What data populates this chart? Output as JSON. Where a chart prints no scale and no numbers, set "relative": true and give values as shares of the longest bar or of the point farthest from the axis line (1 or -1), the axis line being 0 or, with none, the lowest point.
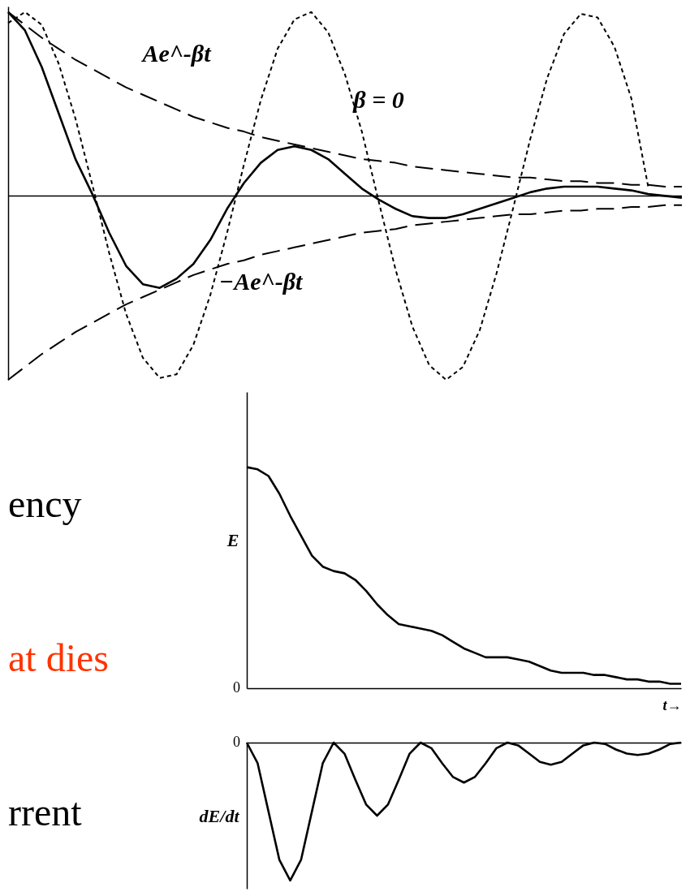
{
  "chart_data": [
    {
      "type": "line",
      "relative": true,
      "tick_labels": false,
      "categories": [
        null,
        null,
        null,
        null,
        null,
        null,
        null,
        null,
        null,
        null,
        null,
        null,
        null,
        null,
        null,
        null,
        null,
        null,
        null,
        null,
        null,
        null,
        null,
        null,
        null,
        null,
        null,
        null,
        null,
        null,
        null,
        null,
        null,
        null,
        null,
        null,
        null,
        null,
        null,
        null,
        null
      ],
      "series": [
        {
          "color": "#000000",
          "line_style": "solid",
          "values": [
            1.0,
            0.9,
            0.7,
            0.45,
            0.2,
            0.01,
            -0.2,
            -0.38,
            -0.48,
            -0.5,
            -0.45,
            -0.37,
            -0.24,
            -0.07,
            0.07,
            0.18,
            0.25,
            0.27,
            0.25,
            0.2,
            0.12,
            0.04,
            -0.02,
            -0.07,
            -0.11,
            -0.12,
            -0.12,
            -0.1,
            -0.07,
            -0.04,
            -0.01,
            0.02,
            0.04,
            0.05,
            0.05,
            0.05,
            0.04,
            0.03,
            0.01,
            0.0,
            -0.01
          ]
        },
        {
          "name": "Ae^-βt",
          "color": "#000000",
          "line_style": "dashed",
          "values": [
            1.0,
            0.93,
            0.86,
            0.8,
            0.74,
            0.69,
            0.64,
            0.59,
            0.55,
            0.51,
            0.47,
            0.43,
            0.4,
            0.37,
            0.35,
            0.32,
            0.3,
            0.28,
            0.26,
            0.24,
            0.22,
            0.2,
            0.19,
            0.18,
            0.16,
            0.15,
            0.14,
            0.13,
            0.12,
            0.11,
            0.1,
            0.1,
            0.09,
            0.08,
            0.08,
            0.07,
            0.07,
            0.06,
            0.06,
            0.05,
            0.05
          ]
        },
        {
          "name": "−Ae^-βt",
          "color": "#000000",
          "line_style": "dashed",
          "values": [
            -1.0,
            -0.93,
            -0.86,
            -0.8,
            -0.74,
            -0.69,
            -0.64,
            -0.59,
            -0.55,
            -0.51,
            -0.47,
            -0.43,
            -0.4,
            -0.37,
            -0.35,
            -0.32,
            -0.3,
            -0.28,
            -0.26,
            -0.24,
            -0.22,
            -0.2,
            -0.19,
            -0.18,
            -0.16,
            -0.15,
            -0.14,
            -0.13,
            -0.12,
            -0.11,
            -0.1,
            -0.1,
            -0.09,
            -0.08,
            -0.08,
            -0.07,
            -0.07,
            -0.06,
            -0.06,
            -0.05,
            -0.05
          ]
        },
        {
          "name": "β = 0",
          "color": "#000000",
          "line_style": "dotted",
          "values": [
            0.94,
            1.0,
            0.93,
            0.72,
            0.42,
            0.06,
            -0.31,
            -0.64,
            -0.88,
            -0.99,
            -0.97,
            -0.81,
            -0.54,
            -0.2,
            0.17,
            0.52,
            0.8,
            0.96,
            1.0,
            0.89,
            0.66,
            0.35,
            -0.03,
            -0.4,
            -0.71,
            -0.92,
            -1.0,
            -0.93,
            -0.73,
            -0.42,
            -0.06,
            0.31,
            0.64,
            0.88,
            0.99,
            0.97,
            0.81,
            0.53,
            0.05,
            null,
            null
          ]
        }
      ]
    },
    {
      "type": "other",
      "annotations": [
        "ency",
        "at dies",
        "rrent"
      ],
      "colors": [
        "#000000",
        "#ff3300",
        "#000000"
      ]
    },
    {
      "type": "line",
      "relative": true,
      "tick_labels": "y",
      "ylabel": "E",
      "xlabel": "t→",
      "annotations": [
        "0"
      ],
      "categories": [
        null,
        null,
        null,
        null,
        null,
        null,
        null,
        null,
        null,
        null,
        null,
        null,
        null,
        null,
        null,
        null,
        null,
        null,
        null,
        null,
        null,
        null,
        null,
        null,
        null,
        null,
        null,
        null,
        null,
        null,
        null,
        null,
        null,
        null,
        null,
        null,
        null,
        null,
        null,
        null,
        null
      ],
      "series": [
        {
          "color": "#000000",
          "line_style": "solid",
          "values": [
            1.0,
            0.99,
            0.96,
            0.88,
            0.78,
            0.69,
            0.6,
            0.55,
            0.53,
            0.52,
            0.49,
            0.44,
            0.38,
            0.33,
            0.29,
            0.28,
            0.27,
            0.26,
            0.24,
            0.21,
            0.18,
            0.16,
            0.14,
            0.14,
            0.14,
            0.13,
            0.12,
            0.1,
            0.08,
            0.07,
            0.07,
            0.07,
            0.06,
            0.06,
            0.05,
            0.04,
            0.04,
            0.03,
            0.03,
            0.02,
            0.02
          ]
        }
      ]
    },
    {
      "type": "line",
      "relative": true,
      "tick_labels": "y",
      "ylabel": "dE/dt",
      "annotations": [
        "0"
      ],
      "categories": [
        null,
        null,
        null,
        null,
        null,
        null,
        null,
        null,
        null,
        null,
        null,
        null,
        null,
        null,
        null,
        null,
        null,
        null,
        null,
        null,
        null,
        null,
        null,
        null,
        null,
        null,
        null,
        null,
        null,
        null,
        null,
        null,
        null,
        null,
        null,
        null,
        null,
        null,
        null,
        null,
        null
      ],
      "series": [
        {
          "color": "#000000",
          "line_style": "solid",
          "values": [
            0.0,
            -0.15,
            -0.5,
            -0.85,
            -1.0,
            -0.85,
            -0.5,
            -0.15,
            0.0,
            -0.08,
            -0.27,
            -0.45,
            -0.53,
            -0.45,
            -0.27,
            -0.08,
            0.0,
            -0.04,
            -0.15,
            -0.25,
            -0.29,
            -0.25,
            -0.15,
            -0.04,
            0.0,
            -0.02,
            -0.08,
            -0.14,
            -0.16,
            -0.14,
            -0.08,
            -0.02,
            0.0,
            -0.01,
            -0.05,
            -0.08,
            -0.09,
            -0.08,
            -0.05,
            -0.01,
            0.0
          ]
        }
      ]
    }
  ]
}
